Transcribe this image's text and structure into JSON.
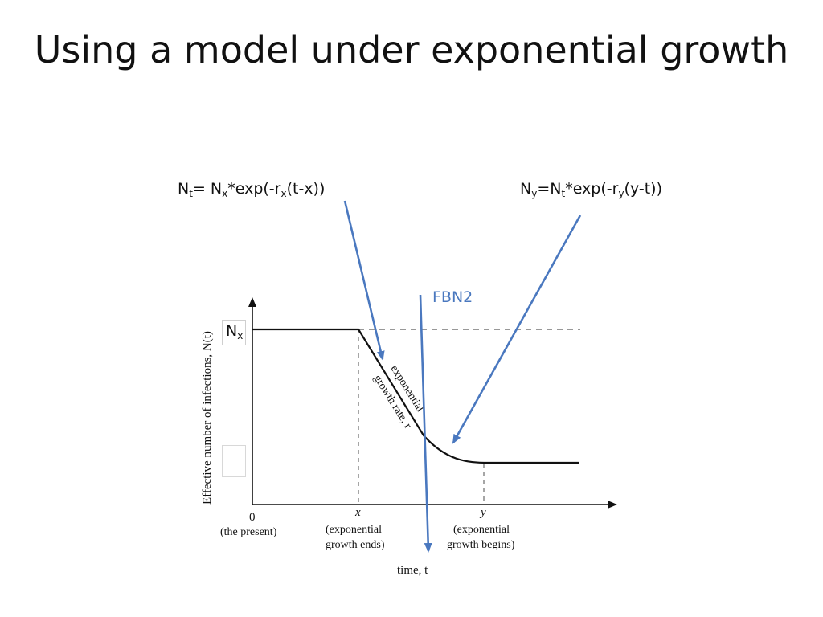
{
  "title": "Using a model under exponential growth",
  "formula_left": {
    "N": "N",
    "sub_t": "t",
    "eq": "= N",
    "sub_x": "x",
    "mid": "*exp(-r",
    "sub_rx": "x",
    "tail": "(t-x))"
  },
  "formula_right": {
    "N": "N",
    "sub_y": "y",
    "eq": "=N",
    "sub_t": "t",
    "mid": "*exp(-r",
    "sub_ry": "y",
    "tail": "(y-t))"
  },
  "gene_label": "FBN2",
  "nx_label": {
    "N": "N",
    "sub": "x"
  },
  "figure": {
    "y_axis_label": "Effective number of infections, N(t)",
    "x_axis_label": "time, t",
    "tick_0": "0",
    "tick_0_caption": "(the present)",
    "tick_x": "x",
    "tick_x_caption_1": "(exponential",
    "tick_x_caption_2": "growth ends)",
    "tick_y": "y",
    "tick_y_caption_1": "(exponential",
    "tick_y_caption_2": "growth begins)",
    "curve_label_1": "exponential",
    "curve_label_2": "growth rate, r"
  },
  "colors": {
    "arrow_blue": "#4a78bf",
    "axis": "#111111",
    "dashed": "#777777"
  }
}
